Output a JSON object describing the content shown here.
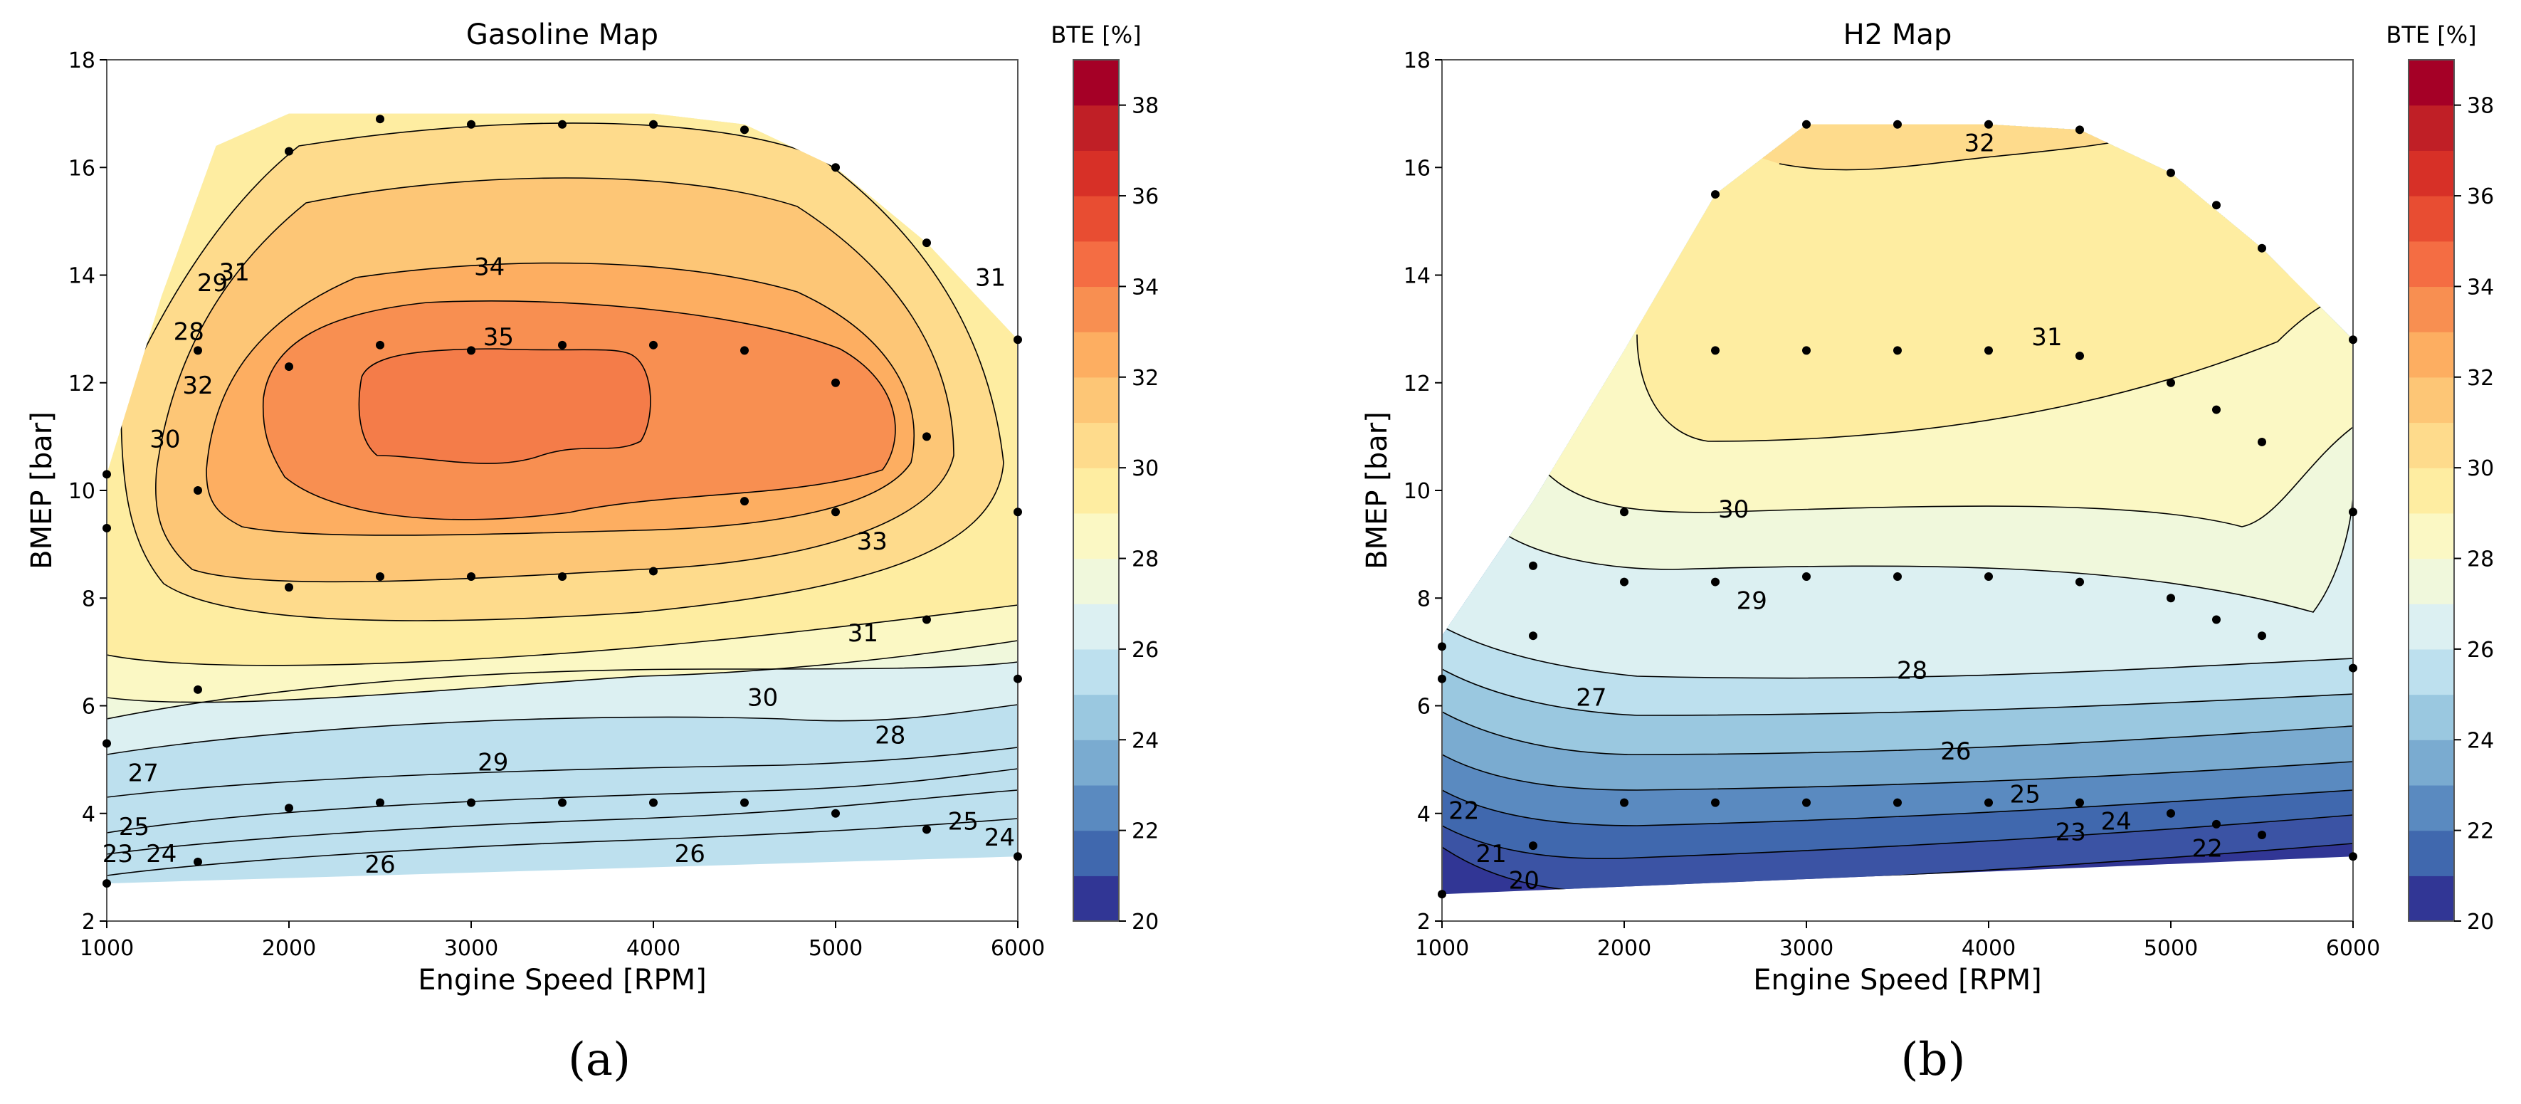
{
  "colors": {
    "levels": [
      "#313695",
      "#4068ae",
      "#5a8ac0",
      "#7aabd0",
      "#9ac8e0",
      "#bde0ee",
      "#dcf0f2",
      "#f0f8dc",
      "#fbf8c4",
      "#feeda1",
      "#fedb8c",
      "#fdc676",
      "#fdae61",
      "#f88f51",
      "#f46d43",
      "#e84d32",
      "#d73027",
      "#c01f26",
      "#a50026"
    ],
    "point": "#000000",
    "frame": "#555555"
  },
  "chart_data": [
    {
      "type": "contour",
      "name": "gasoline",
      "title": "Gasoline Map",
      "caption": "(a)",
      "xlabel": "Engine Speed [RPM]",
      "ylabel": "BMEP [bar]",
      "xlim": [
        1000,
        6000
      ],
      "ylim": [
        2,
        18
      ],
      "xticks": [
        "1000",
        "2000",
        "3000",
        "4000",
        "5000",
        "6000"
      ],
      "yticks": [
        "2",
        "4",
        "6",
        "8",
        "10",
        "12",
        "14",
        "16",
        "18"
      ],
      "colorbar": {
        "title": "BTE [%]",
        "min": 20,
        "max": 39,
        "ticks": [
          "20",
          "22",
          "24",
          "26",
          "28",
          "30",
          "32",
          "34",
          "36",
          "38"
        ]
      },
      "contour_labels": [
        {
          "text": "34",
          "x": 3100,
          "y": 14.0
        },
        {
          "text": "35",
          "x": 3150,
          "y": 12.7
        },
        {
          "text": "33",
          "x": 5200,
          "y": 8.9
        },
        {
          "text": "31",
          "x": 5150,
          "y": 7.2
        },
        {
          "text": "30",
          "x": 4600,
          "y": 6.0
        },
        {
          "text": "29",
          "x": 3120,
          "y": 4.8
        },
        {
          "text": "28",
          "x": 5300,
          "y": 5.3
        },
        {
          "text": "27",
          "x": 1200,
          "y": 4.6
        },
        {
          "text": "26",
          "x": 2500,
          "y": 2.9
        },
        {
          "text": "26",
          "x": 4200,
          "y": 3.1
        },
        {
          "text": "25",
          "x": 1150,
          "y": 3.6
        },
        {
          "text": "24",
          "x": 1300,
          "y": 3.1
        },
        {
          "text": "23",
          "x": 1060,
          "y": 3.1
        },
        {
          "text": "25",
          "x": 5700,
          "y": 3.7
        },
        {
          "text": "24",
          "x": 5900,
          "y": 3.4
        },
        {
          "text": "31",
          "x": 5850,
          "y": 13.8
        },
        {
          "text": "32",
          "x": 1500,
          "y": 11.8
        },
        {
          "text": "31",
          "x": 1700,
          "y": 13.9
        },
        {
          "text": "30",
          "x": 1320,
          "y": 10.8
        },
        {
          "text": "29",
          "x": 1580,
          "y": 13.7
        },
        {
          "text": "28",
          "x": 1450,
          "y": 12.8
        }
      ],
      "points": [
        [
          1000,
          10.3
        ],
        [
          1000,
          9.3
        ],
        [
          1000,
          5.3
        ],
        [
          1000,
          2.7
        ],
        [
          1500,
          12.6
        ],
        [
          1500,
          10.0
        ],
        [
          1500,
          6.3
        ],
        [
          1500,
          3.1
        ],
        [
          2000,
          16.3
        ],
        [
          2000,
          12.3
        ],
        [
          2000,
          8.2
        ],
        [
          2000,
          4.1
        ],
        [
          2500,
          16.9
        ],
        [
          2500,
          12.7
        ],
        [
          2500,
          8.4
        ],
        [
          2500,
          4.2
        ],
        [
          3000,
          16.8
        ],
        [
          3000,
          12.6
        ],
        [
          3000,
          8.4
        ],
        [
          3000,
          4.2
        ],
        [
          3500,
          16.8
        ],
        [
          3500,
          12.7
        ],
        [
          3500,
          8.4
        ],
        [
          3500,
          4.2
        ],
        [
          4000,
          16.8
        ],
        [
          4000,
          12.7
        ],
        [
          4000,
          8.5
        ],
        [
          4000,
          4.2
        ],
        [
          4500,
          16.7
        ],
        [
          4500,
          12.6
        ],
        [
          4500,
          9.8
        ],
        [
          4500,
          4.2
        ],
        [
          5000,
          16.0
        ],
        [
          5000,
          12.0
        ],
        [
          5000,
          9.6
        ],
        [
          5000,
          4.0
        ],
        [
          5500,
          14.6
        ],
        [
          5500,
          11.0
        ],
        [
          5500,
          7.6
        ],
        [
          5500,
          3.7
        ],
        [
          6000,
          12.8
        ],
        [
          6000,
          9.6
        ],
        [
          6000,
          6.5
        ],
        [
          6000,
          3.2
        ]
      ]
    },
    {
      "type": "contour",
      "name": "h2",
      "title": "H2 Map",
      "caption": "(b)",
      "xlabel": "Engine Speed [RPM]",
      "ylabel": "BMEP [bar]",
      "xlim": [
        1000,
        6000
      ],
      "ylim": [
        2,
        18
      ],
      "xticks": [
        "1000",
        "2000",
        "3000",
        "4000",
        "5000",
        "6000"
      ],
      "yticks": [
        "2",
        "4",
        "6",
        "8",
        "10",
        "12",
        "14",
        "16",
        "18"
      ],
      "colorbar": {
        "title": "BTE [%]",
        "min": 20,
        "max": 39,
        "ticks": [
          "20",
          "22",
          "24",
          "26",
          "28",
          "30",
          "32",
          "34",
          "36",
          "38"
        ]
      },
      "contour_labels": [
        {
          "text": "32",
          "x": 3950,
          "y": 16.3
        },
        {
          "text": "31",
          "x": 4320,
          "y": 12.7
        },
        {
          "text": "30",
          "x": 2600,
          "y": 9.5
        },
        {
          "text": "29",
          "x": 2700,
          "y": 7.8
        },
        {
          "text": "28",
          "x": 3580,
          "y": 6.5
        },
        {
          "text": "27",
          "x": 1820,
          "y": 6.0
        },
        {
          "text": "26",
          "x": 3820,
          "y": 5.0
        },
        {
          "text": "25",
          "x": 4200,
          "y": 4.2
        },
        {
          "text": "24",
          "x": 4700,
          "y": 3.7
        },
        {
          "text": "23",
          "x": 4450,
          "y": 3.5
        },
        {
          "text": "22",
          "x": 1120,
          "y": 3.9
        },
        {
          "text": "22",
          "x": 5200,
          "y": 3.2
        },
        {
          "text": "21",
          "x": 1270,
          "y": 3.1
        },
        {
          "text": "20",
          "x": 1450,
          "y": 2.6
        }
      ],
      "points": [
        [
          1000,
          7.1
        ],
        [
          1000,
          6.5
        ],
        [
          1000,
          2.5
        ],
        [
          1500,
          8.6
        ],
        [
          1500,
          7.3
        ],
        [
          1500,
          3.4
        ],
        [
          2000,
          9.6
        ],
        [
          2000,
          8.3
        ],
        [
          2000,
          4.2
        ],
        [
          2500,
          15.5
        ],
        [
          2500,
          12.6
        ],
        [
          2500,
          8.3
        ],
        [
          2500,
          4.2
        ],
        [
          3000,
          16.8
        ],
        [
          3000,
          12.6
        ],
        [
          3000,
          8.4
        ],
        [
          3000,
          4.2
        ],
        [
          3500,
          16.8
        ],
        [
          3500,
          12.6
        ],
        [
          3500,
          8.4
        ],
        [
          3500,
          4.2
        ],
        [
          4000,
          16.8
        ],
        [
          4000,
          12.6
        ],
        [
          4000,
          8.4
        ],
        [
          4000,
          4.2
        ],
        [
          4500,
          16.7
        ],
        [
          4500,
          12.5
        ],
        [
          4500,
          8.3
        ],
        [
          4500,
          4.2
        ],
        [
          5000,
          15.9
        ],
        [
          5000,
          12.0
        ],
        [
          5000,
          8.0
        ],
        [
          5000,
          4.0
        ],
        [
          5250,
          15.3
        ],
        [
          5250,
          11.5
        ],
        [
          5250,
          7.6
        ],
        [
          5250,
          3.8
        ],
        [
          5500,
          14.5
        ],
        [
          5500,
          10.9
        ],
        [
          5500,
          7.3
        ],
        [
          5500,
          3.6
        ],
        [
          6000,
          12.8
        ],
        [
          6000,
          9.6
        ],
        [
          6000,
          6.7
        ],
        [
          6000,
          3.2
        ]
      ]
    }
  ]
}
